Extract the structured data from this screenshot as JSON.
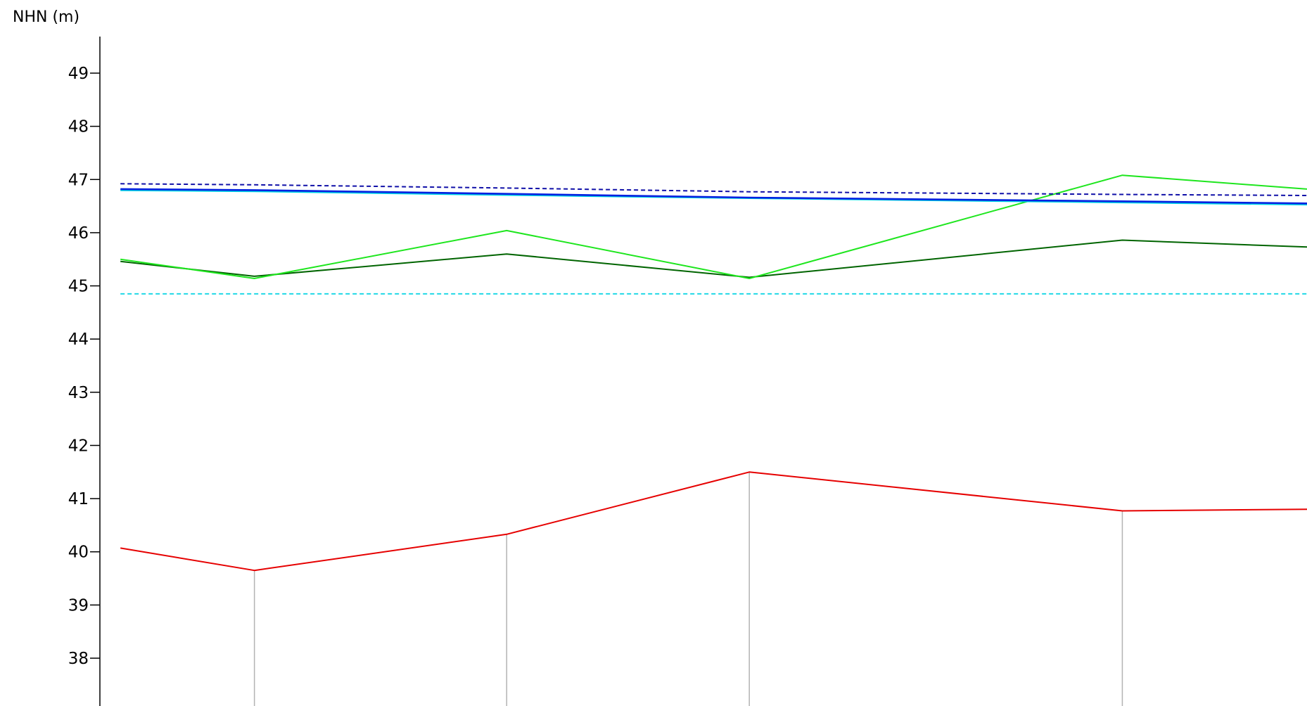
{
  "chart_data": {
    "type": "line",
    "ylabel": "NHN (m)",
    "ylim": [
      37.1,
      49.6
    ],
    "yticks": [
      38,
      39,
      40,
      41,
      42,
      43,
      44,
      45,
      46,
      47,
      48,
      49
    ],
    "xlim": [
      0,
      1
    ],
    "stations": [
      0.128,
      0.337,
      0.538,
      0.847
    ],
    "series": [
      {
        "key": "red",
        "color": "#e60000",
        "dashed": false,
        "x": [
          0.017,
          0.128,
          0.337,
          0.538,
          0.847,
          1.0
        ],
        "values": [
          40.07,
          39.65,
          40.33,
          41.5,
          40.77,
          40.8
        ]
      },
      {
        "key": "darkgreen",
        "color": "#006400",
        "dashed": false,
        "x": [
          0.017,
          0.128,
          0.337,
          0.538,
          0.847,
          1.0
        ],
        "values": [
          45.46,
          45.18,
          45.6,
          45.16,
          45.86,
          45.73
        ]
      },
      {
        "key": "lightgreen",
        "color": "#1ee61e",
        "dashed": false,
        "x": [
          0.017,
          0.128,
          0.337,
          0.538,
          0.847,
          1.0
        ],
        "values": [
          45.5,
          45.14,
          46.04,
          45.14,
          47.08,
          46.82
        ]
      },
      {
        "key": "cyan",
        "color": "#00d8e6",
        "dashed": false,
        "x": [
          0.017,
          0.128,
          0.337,
          0.538,
          0.847,
          1.0
        ],
        "values": [
          46.8,
          46.78,
          46.71,
          46.65,
          46.57,
          46.53
        ]
      },
      {
        "key": "blue",
        "color": "#0020e0",
        "dashed": false,
        "x": [
          0.017,
          0.128,
          0.337,
          0.538,
          0.847,
          1.0
        ],
        "values": [
          46.82,
          46.8,
          46.73,
          46.66,
          46.59,
          46.55
        ]
      },
      {
        "key": "navy-dashed",
        "color": "#1010a8",
        "dashed": true,
        "x": [
          0.017,
          0.128,
          0.337,
          0.538,
          0.847,
          1.0
        ],
        "values": [
          46.92,
          46.9,
          46.84,
          46.77,
          46.72,
          46.7
        ]
      },
      {
        "key": "cyan-dashed",
        "color": "#20d8e6",
        "dashed": true,
        "x": [
          0.017,
          1.0
        ],
        "values": [
          44.85,
          44.85
        ]
      }
    ]
  }
}
